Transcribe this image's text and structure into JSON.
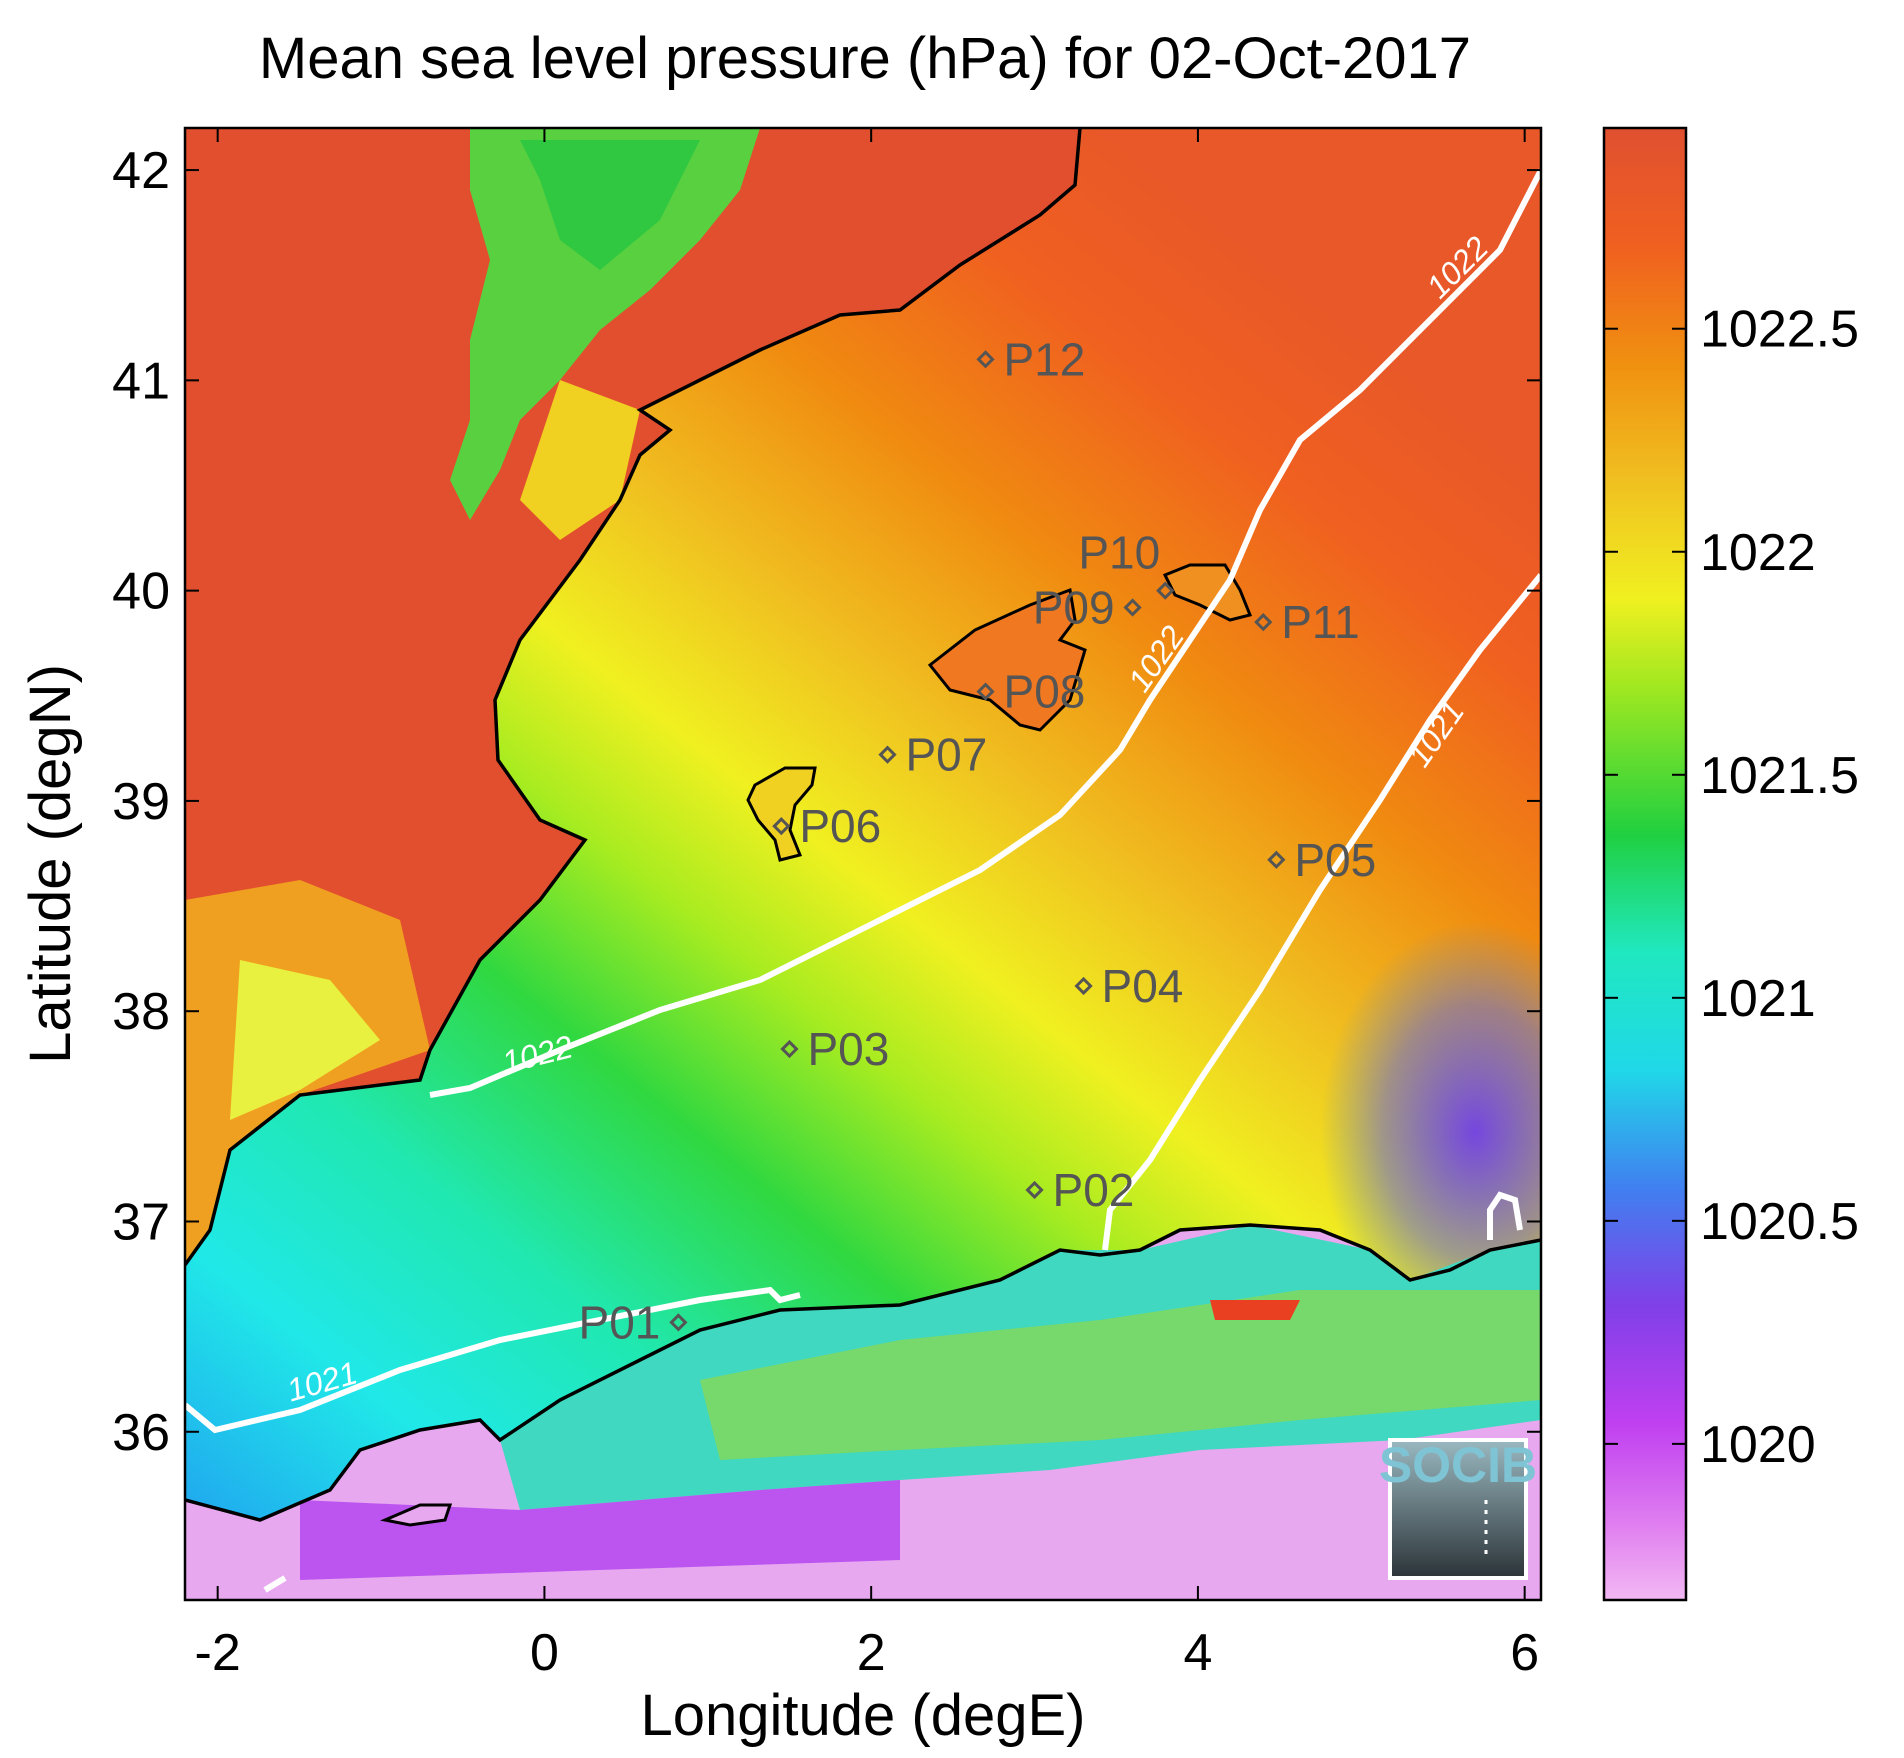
{
  "title": "Mean sea level pressure (hPa) for 02-Oct-2017",
  "x_axis": {
    "label": "Longitude (degE)",
    "range": [
      -2.2,
      6.1
    ],
    "ticks": [
      {
        "value": -2,
        "label": "-2"
      },
      {
        "value": 0,
        "label": "0"
      },
      {
        "value": 2,
        "label": "2"
      },
      {
        "value": 4,
        "label": "4"
      },
      {
        "value": 6,
        "label": "6"
      }
    ]
  },
  "y_axis": {
    "label": "Latitude (degN)",
    "range": [
      35.2,
      42.2
    ],
    "ticks": [
      {
        "value": 36,
        "label": "36"
      },
      {
        "value": 37,
        "label": "37"
      },
      {
        "value": 38,
        "label": "38"
      },
      {
        "value": 39,
        "label": "39"
      },
      {
        "value": 40,
        "label": "40"
      },
      {
        "value": 41,
        "label": "41"
      },
      {
        "value": 42,
        "label": "42"
      }
    ]
  },
  "colorbar": {
    "range": [
      1019.65,
      1022.95
    ],
    "ticks": [
      {
        "value": 1020,
        "label": "1020"
      },
      {
        "value": 1020.5,
        "label": "1020.5"
      },
      {
        "value": 1021,
        "label": "1021"
      },
      {
        "value": 1021.5,
        "label": "1021.5"
      },
      {
        "value": 1022,
        "label": "1022"
      },
      {
        "value": 1022.5,
        "label": "1022.5"
      }
    ],
    "colors": [
      "#f2b8f2",
      "#c040f0",
      "#6a40e8",
      "#4080f0",
      "#20d8e8",
      "#20e8c0",
      "#20d040",
      "#a0e820",
      "#f0f020",
      "#f0c020",
      "#f09010",
      "#f06020",
      "#e05030"
    ]
  },
  "stations": [
    {
      "id": "P01",
      "lon": 0.82,
      "lat": 36.52
    },
    {
      "id": "P02",
      "lon": 3.0,
      "lat": 37.15
    },
    {
      "id": "P03",
      "lon": 1.5,
      "lat": 37.82
    },
    {
      "id": "P04",
      "lon": 3.3,
      "lat": 38.12
    },
    {
      "id": "P05",
      "lon": 4.48,
      "lat": 38.72
    },
    {
      "id": "P06",
      "lon": 1.45,
      "lat": 38.88
    },
    {
      "id": "P07",
      "lon": 2.1,
      "lat": 39.22
    },
    {
      "id": "P08",
      "lon": 2.7,
      "lat": 39.52
    },
    {
      "id": "P09",
      "lon": 3.6,
      "lat": 39.92
    },
    {
      "id": "P10",
      "lon": 3.8,
      "lat": 40.0
    },
    {
      "id": "P11",
      "lon": 4.4,
      "lat": 39.85
    },
    {
      "id": "P12",
      "lon": 2.7,
      "lat": 41.1
    }
  ],
  "contours": [
    {
      "level": "1022",
      "label": "1022"
    },
    {
      "level": "1021",
      "label": "1021"
    }
  ],
  "logo": {
    "text": "SOCIB"
  }
}
